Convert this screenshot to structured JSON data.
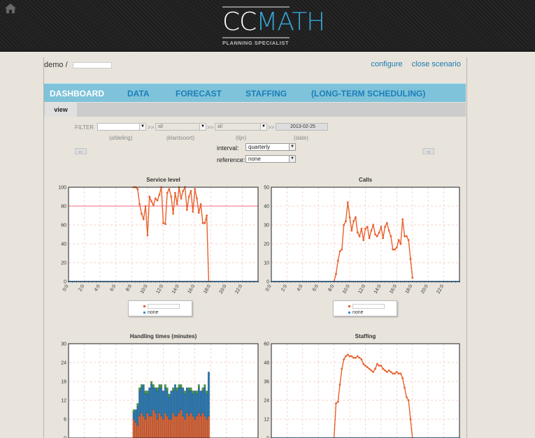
{
  "logo": {
    "part1": "CC",
    "part2": "MATH",
    "tagline": "PLANNING SPECIALIST"
  },
  "breadcrumb": {
    "user": "demo",
    "separator": "/"
  },
  "toplinks": [
    "configure",
    "close scenario"
  ],
  "nav": {
    "tabs": [
      "DASHBOARD",
      "DATA",
      "FORECAST",
      "STAFFING",
      "(LONG-TERM SCHEDULING)"
    ],
    "active": 0,
    "subtab": "view"
  },
  "filter": {
    "label": "FILTER",
    "afdeling": {
      "value": "",
      "label": "(afdeling)"
    },
    "klantsoort": {
      "value": "all",
      "label": "(klantsoort)"
    },
    "lijn": {
      "value": "all",
      "label": "(lijn)"
    },
    "date": {
      "value": "2013-02-25",
      "label": "(date)"
    },
    "separator": ">>",
    "prev": "←",
    "next": "→"
  },
  "controls": {
    "interval_label": "interval:",
    "interval_value": "quarterly",
    "reference_label": "reference:",
    "reference_value": "none"
  },
  "colors": {
    "series": "#e8602c",
    "none": "#3a8fd8",
    "target": "#ee3b5b",
    "blue_bar": "#1e7bbf",
    "green_bar": "#3aa845"
  },
  "x_ticks": [
    "0:0",
    "2:0",
    "4:0",
    "6:0",
    "8:0",
    "10:0",
    "12:0",
    "14:0",
    "16:0",
    "18:0",
    "20:0",
    "22:0"
  ],
  "chart_data": [
    {
      "type": "line",
      "title": "Service level",
      "ylim": [
        0,
        100
      ],
      "yticks": [
        0,
        20,
        40,
        60,
        80,
        100
      ],
      "target": 80,
      "series": [
        {
          "name": "",
          "x": [
            8.25,
            8.5,
            8.75,
            9,
            9.25,
            9.5,
            9.75,
            10,
            10.25,
            10.5,
            10.75,
            11,
            11.25,
            11.5,
            11.75,
            12,
            12.25,
            12.5,
            12.75,
            13,
            13.25,
            13.5,
            13.75,
            14,
            14.25,
            14.5,
            14.75,
            15,
            15.25,
            15.5,
            15.75,
            16,
            16.25,
            16.5,
            16.75,
            17,
            17.25,
            17.5,
            17.75
          ],
          "y": [
            100,
            100,
            98,
            82,
            72,
            66,
            80,
            49,
            90,
            85,
            81,
            88,
            86,
            92,
            100,
            62,
            61,
            94,
            98,
            90,
            72,
            94,
            82,
            100,
            88,
            96,
            100,
            76,
            90,
            96,
            74,
            98,
            88,
            73,
            82,
            62,
            62,
            70,
            0
          ]
        },
        {
          "name": "none",
          "x": "flat",
          "y": 0
        }
      ]
    },
    {
      "type": "line",
      "title": "Calls",
      "ylim": [
        0,
        50
      ],
      "yticks": [
        0,
        10,
        20,
        30,
        40,
        50
      ],
      "series": [
        {
          "name": "",
          "x": [
            8,
            8.25,
            8.5,
            8.75,
            9,
            9.25,
            9.5,
            9.75,
            10,
            10.25,
            10.5,
            10.75,
            11,
            11.25,
            11.5,
            11.75,
            12,
            12.25,
            12.5,
            12.75,
            13,
            13.25,
            13.5,
            13.75,
            14,
            14.25,
            14.5,
            14.75,
            15,
            15.25,
            15.5,
            15.75,
            16,
            16.25,
            16.5,
            16.75,
            17,
            17.25,
            17.5,
            17.75,
            18
          ],
          "y": [
            0,
            4,
            11,
            16,
            17,
            30,
            32,
            42,
            34,
            27,
            32,
            34,
            26,
            24,
            28,
            22,
            28,
            29,
            23,
            27,
            30,
            25,
            24,
            26,
            29,
            23,
            29,
            31,
            27,
            24,
            17,
            17,
            18,
            22,
            20,
            33,
            24,
            24,
            22,
            12,
            2
          ]
        },
        {
          "name": "none",
          "x": "flat",
          "y": 0
        }
      ]
    },
    {
      "type": "bar",
      "title": "Handling times (minutes)",
      "ylim": [
        0,
        30
      ],
      "yticks": [
        0,
        6,
        12,
        18,
        24,
        30
      ],
      "stacked": {
        "x_start": 8.25,
        "step": 0.25,
        "orange": [
          6,
          5,
          4,
          7,
          8,
          7,
          6,
          8,
          7,
          7,
          9,
          8,
          6,
          8,
          7,
          6,
          8,
          7,
          6,
          6,
          8,
          7,
          7,
          8,
          9,
          7,
          6,
          8,
          7,
          8,
          7,
          6,
          7,
          8,
          7,
          8,
          7,
          6,
          7
        ],
        "blue": [
          2,
          4,
          6,
          8,
          8,
          10,
          8,
          6,
          9,
          10,
          7,
          8,
          9,
          8,
          9,
          9,
          8,
          8,
          7,
          9,
          7,
          10,
          8,
          8,
          7,
          9,
          8,
          8,
          8,
          7,
          7,
          9,
          7,
          8,
          8,
          7,
          9,
          8,
          14
        ],
        "green": [
          1,
          0,
          1,
          1,
          1,
          0,
          1,
          1,
          0,
          1,
          1,
          0,
          1,
          1,
          1,
          0,
          1,
          1,
          1,
          0,
          1,
          0,
          1,
          1,
          1,
          0,
          1,
          0,
          1,
          1,
          1,
          0,
          1,
          1,
          0,
          1,
          1,
          1,
          0
        ]
      }
    },
    {
      "type": "line",
      "title": "Staffing",
      "ylim": [
        0,
        60
      ],
      "yticks": [
        0,
        12,
        24,
        36,
        48,
        60
      ],
      "series": [
        {
          "name": "",
          "x": [
            8,
            8.25,
            8.5,
            8.75,
            9,
            9.25,
            9.5,
            9.75,
            10,
            10.25,
            10.5,
            10.75,
            11,
            11.25,
            11.5,
            11.75,
            12,
            12.25,
            12.5,
            12.75,
            13,
            13.25,
            13.5,
            13.75,
            14,
            14.25,
            14.5,
            14.75,
            15,
            15.25,
            15.5,
            15.75,
            16,
            16.25,
            16.5,
            16.75,
            17,
            17.25,
            17.5,
            17.75,
            18
          ],
          "y": [
            0,
            22,
            23,
            34,
            44,
            50,
            52,
            53,
            52,
            52,
            51,
            51,
            52,
            51,
            50,
            47,
            46,
            45,
            44,
            43,
            42,
            44,
            47,
            46,
            46,
            44,
            43,
            42,
            43,
            42,
            41,
            41,
            42,
            41,
            41,
            38,
            32,
            26,
            24,
            12,
            0
          ]
        },
        {
          "name": "none",
          "x": "flat",
          "y": 0
        }
      ]
    }
  ]
}
